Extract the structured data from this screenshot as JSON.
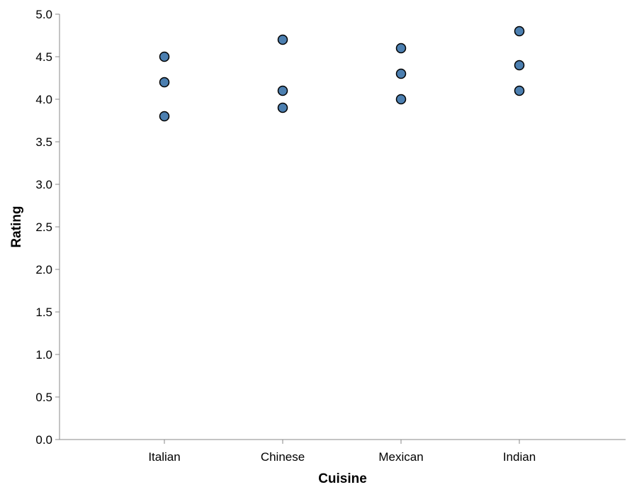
{
  "chart_data": {
    "type": "scatter",
    "title": "",
    "xlabel": "Cuisine",
    "ylabel": "Rating",
    "categories": [
      "Italian",
      "Chinese",
      "Mexican",
      "Indian"
    ],
    "points": [
      {
        "x": "Italian",
        "y": 4.5
      },
      {
        "x": "Italian",
        "y": 4.2
      },
      {
        "x": "Italian",
        "y": 3.8
      },
      {
        "x": "Chinese",
        "y": 4.7
      },
      {
        "x": "Chinese",
        "y": 4.1
      },
      {
        "x": "Chinese",
        "y": 3.9
      },
      {
        "x": "Mexican",
        "y": 4.6
      },
      {
        "x": "Mexican",
        "y": 4.3
      },
      {
        "x": "Mexican",
        "y": 4.0
      },
      {
        "x": "Indian",
        "y": 4.8
      },
      {
        "x": "Indian",
        "y": 4.4
      },
      {
        "x": "Indian",
        "y": 4.1
      }
    ],
    "yticks": [
      "0.0",
      "0.5",
      "1.0",
      "1.5",
      "2.0",
      "2.5",
      "3.0",
      "3.5",
      "4.0",
      "4.5",
      "5.0"
    ],
    "ylim": [
      0,
      5
    ],
    "grid": false,
    "legend": "none",
    "marker_color": "#4c7fb0"
  }
}
